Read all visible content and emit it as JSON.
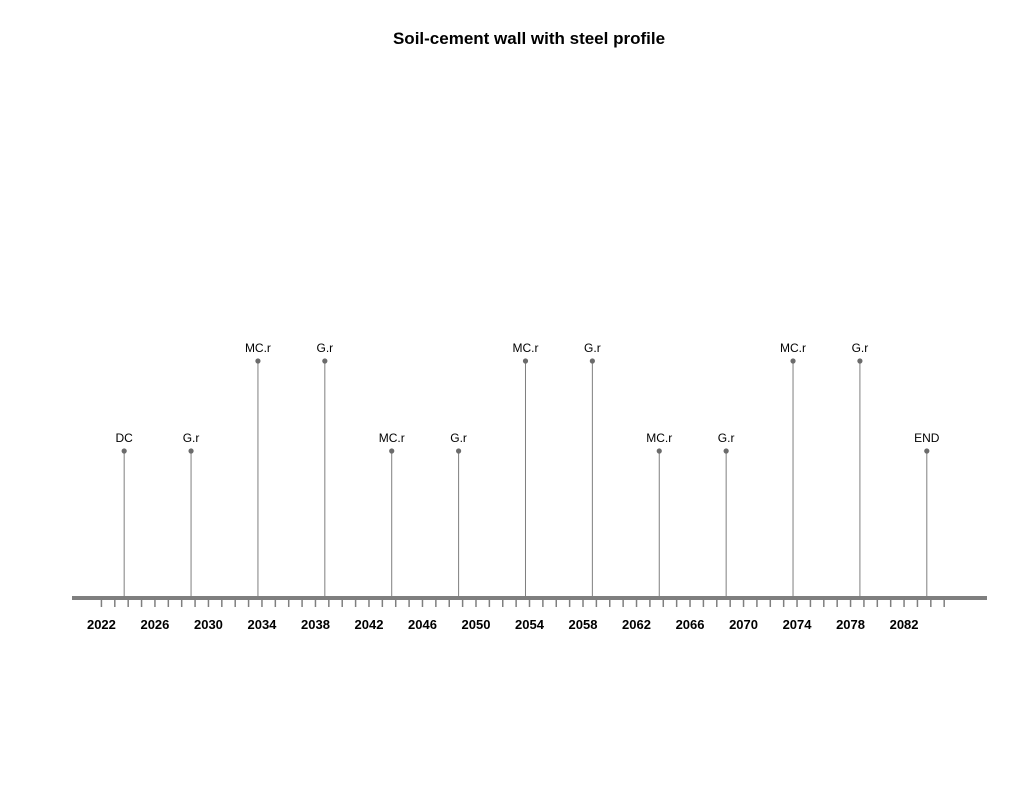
{
  "chart_data": {
    "type": "timeline",
    "title": "Soil-cement wall with steel profile",
    "xlabel": "",
    "ylabel": "",
    "xlim": [
      2019.8,
      2088.2
    ],
    "year_ticks": [
      2022,
      2026,
      2030,
      2034,
      2038,
      2042,
      2046,
      2050,
      2054,
      2058,
      2062,
      2066,
      2070,
      2074,
      2078,
      2082
    ],
    "minor_tick_step": 1,
    "minor_tick_range": [
      2022,
      2085
    ],
    "events": [
      {
        "year": 2023.7,
        "label": "DC",
        "level": 1
      },
      {
        "year": 2028.7,
        "label": "G.r",
        "level": 1
      },
      {
        "year": 2033.7,
        "label": "MC.r",
        "level": 2
      },
      {
        "year": 2038.7,
        "label": "G.r",
        "level": 2
      },
      {
        "year": 2043.7,
        "label": "MC.r",
        "level": 1
      },
      {
        "year": 2048.7,
        "label": "G.r",
        "level": 1
      },
      {
        "year": 2053.7,
        "label": "MC.r",
        "level": 2
      },
      {
        "year": 2058.7,
        "label": "G.r",
        "level": 2
      },
      {
        "year": 2063.7,
        "label": "MC.r",
        "level": 1
      },
      {
        "year": 2068.7,
        "label": "G.r",
        "level": 1
      },
      {
        "year": 2073.7,
        "label": "MC.r",
        "level": 2
      },
      {
        "year": 2078.7,
        "label": "G.r",
        "level": 2
      },
      {
        "year": 2083.7,
        "label": "END",
        "level": 1
      }
    ],
    "grid": false,
    "legend": "none"
  },
  "colors": {
    "axis": "#7f7f7f",
    "stem": "#7f7f7f",
    "point": "#6b6b6b",
    "text": "#000000"
  }
}
